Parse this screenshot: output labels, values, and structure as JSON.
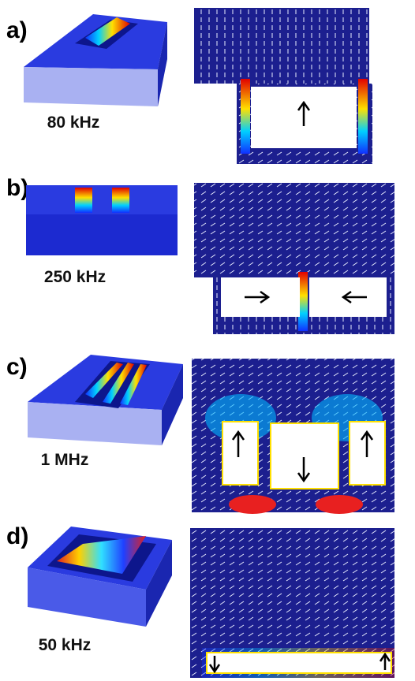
{
  "panels": [
    {
      "label": "a)",
      "frequency": "80 kHz"
    },
    {
      "label": "b)",
      "frequency": "250 kHz"
    },
    {
      "label": "c)",
      "frequency": "1 MHz"
    },
    {
      "label": "d)",
      "frequency": "50 kHz"
    }
  ]
}
